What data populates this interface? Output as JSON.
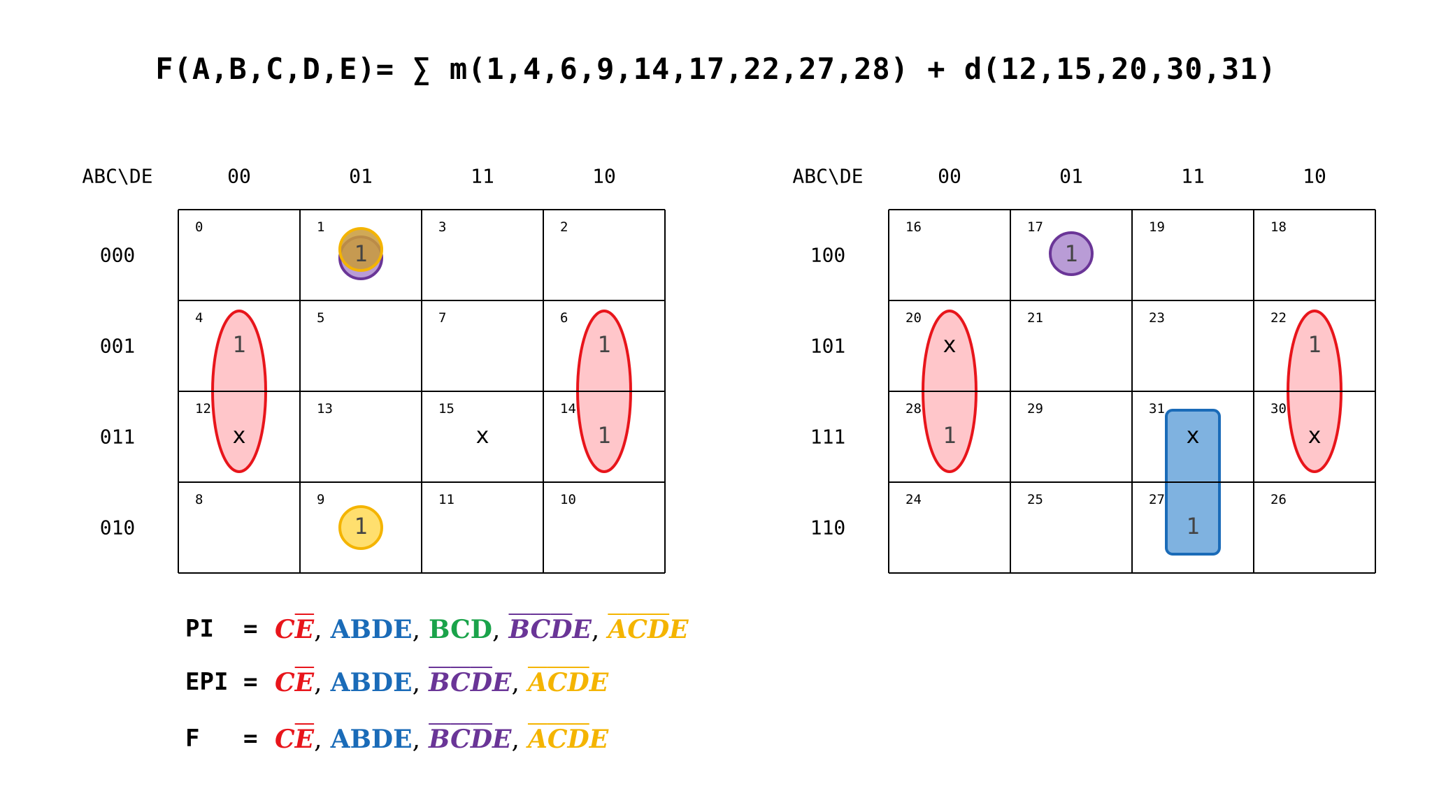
{
  "title": "F(A,B,C,D,E)= ∑ m(1,4,6,9,14,17,22,27,28) + d(12,15,20,30,31)",
  "colors": {
    "red": "#e8151b",
    "blue": "#1a6bb8",
    "green": "#1aa34a",
    "purple": "#6a3597",
    "yellow": "#f4b400",
    "red_fill": "#ffb3b8",
    "blue_fill": "#7fb2e0",
    "purple_fill": "#b99cd6",
    "yellow_fill": "#ffdf6e"
  },
  "kmap_left": {
    "corner": "ABC\\DE",
    "col_headers": [
      "00",
      "01",
      "11",
      "10"
    ],
    "row_headers": [
      "000",
      "001",
      "011",
      "010"
    ],
    "cells": [
      [
        {
          "n": "0",
          "v": ""
        },
        {
          "n": "1",
          "v": "1"
        },
        {
          "n": "3",
          "v": ""
        },
        {
          "n": "2",
          "v": ""
        }
      ],
      [
        {
          "n": "4",
          "v": "1"
        },
        {
          "n": "5",
          "v": ""
        },
        {
          "n": "7",
          "v": ""
        },
        {
          "n": "6",
          "v": "1"
        }
      ],
      [
        {
          "n": "12",
          "v": "x"
        },
        {
          "n": "13",
          "v": ""
        },
        {
          "n": "15",
          "v": "x"
        },
        {
          "n": "14",
          "v": "1"
        }
      ],
      [
        {
          "n": "8",
          "v": ""
        },
        {
          "n": "9",
          "v": "1"
        },
        {
          "n": "11",
          "v": ""
        },
        {
          "n": "10",
          "v": ""
        }
      ]
    ]
  },
  "kmap_right": {
    "corner": "ABC\\DE",
    "col_headers": [
      "00",
      "01",
      "11",
      "10"
    ],
    "row_headers": [
      "100",
      "101",
      "111",
      "110"
    ],
    "cells": [
      [
        {
          "n": "16",
          "v": ""
        },
        {
          "n": "17",
          "v": "1"
        },
        {
          "n": "19",
          "v": ""
        },
        {
          "n": "18",
          "v": ""
        }
      ],
      [
        {
          "n": "20",
          "v": "x"
        },
        {
          "n": "21",
          "v": ""
        },
        {
          "n": "23",
          "v": ""
        },
        {
          "n": "22",
          "v": "1"
        }
      ],
      [
        {
          "n": "28",
          "v": "1"
        },
        {
          "n": "29",
          "v": ""
        },
        {
          "n": "31",
          "v": "x"
        },
        {
          "n": "30",
          "v": "x"
        }
      ],
      [
        {
          "n": "24",
          "v": ""
        },
        {
          "n": "25",
          "v": ""
        },
        {
          "n": "27",
          "v": "1"
        },
        {
          "n": "26",
          "v": ""
        }
      ]
    ]
  },
  "expressions": [
    {
      "name": "PI",
      "eq": "=",
      "terms": [
        {
          "color": "red",
          "italic": true,
          "parts": [
            {
              "t": "C",
              "o": false
            },
            {
              "t": "E",
              "o": true
            }
          ],
          "sep": ","
        },
        {
          "color": "blue",
          "italic": false,
          "parts": [
            {
              "t": "ABDE",
              "o": false
            }
          ],
          "sep": ","
        },
        {
          "color": "green",
          "italic": false,
          "parts": [
            {
              "t": "BCD",
              "o": false
            }
          ],
          "sep": ","
        },
        {
          "color": "purple",
          "italic": true,
          "parts": [
            {
              "t": "B",
              "o": true
            },
            {
              "t": "C",
              "o": true
            },
            {
              "t": "D",
              "o": true
            },
            {
              "t": "E",
              "o": false
            }
          ],
          "sep": ","
        },
        {
          "color": "yellow",
          "italic": true,
          "parts": [
            {
              "t": "A",
              "o": true
            },
            {
              "t": "C",
              "o": true
            },
            {
              "t": "D",
              "o": true
            },
            {
              "t": "E",
              "o": false
            }
          ],
          "sep": ""
        }
      ]
    },
    {
      "name": "EPI",
      "eq": "=",
      "terms": [
        {
          "color": "red",
          "italic": true,
          "parts": [
            {
              "t": "C",
              "o": false
            },
            {
              "t": "E",
              "o": true
            }
          ],
          "sep": ","
        },
        {
          "color": "blue",
          "italic": false,
          "parts": [
            {
              "t": "ABDE",
              "o": false
            }
          ],
          "sep": ","
        },
        {
          "color": "purple",
          "italic": true,
          "parts": [
            {
              "t": "B",
              "o": true
            },
            {
              "t": "C",
              "o": true
            },
            {
              "t": "D",
              "o": true
            },
            {
              "t": "E",
              "o": false
            }
          ],
          "sep": ","
        },
        {
          "color": "yellow",
          "italic": true,
          "parts": [
            {
              "t": "A",
              "o": true
            },
            {
              "t": "C",
              "o": true
            },
            {
              "t": "D",
              "o": true
            },
            {
              "t": "E",
              "o": false
            }
          ],
          "sep": ""
        }
      ]
    },
    {
      "name": "F",
      "eq": "=",
      "terms": [
        {
          "color": "red",
          "italic": true,
          "parts": [
            {
              "t": "C",
              "o": false
            },
            {
              "t": "E",
              "o": true
            }
          ],
          "sep": ","
        },
        {
          "color": "blue",
          "italic": false,
          "parts": [
            {
              "t": "ABDE",
              "o": false
            }
          ],
          "sep": ","
        },
        {
          "color": "purple",
          "italic": true,
          "parts": [
            {
              "t": "B",
              "o": true
            },
            {
              "t": "C",
              "o": true
            },
            {
              "t": "D",
              "o": true
            },
            {
              "t": "E",
              "o": false
            }
          ],
          "sep": ","
        },
        {
          "color": "yellow",
          "italic": true,
          "parts": [
            {
              "t": "A",
              "o": true
            },
            {
              "t": "C",
              "o": true
            },
            {
              "t": "D",
              "o": true
            },
            {
              "t": "E",
              "o": false
            }
          ],
          "sep": ""
        }
      ]
    }
  ]
}
